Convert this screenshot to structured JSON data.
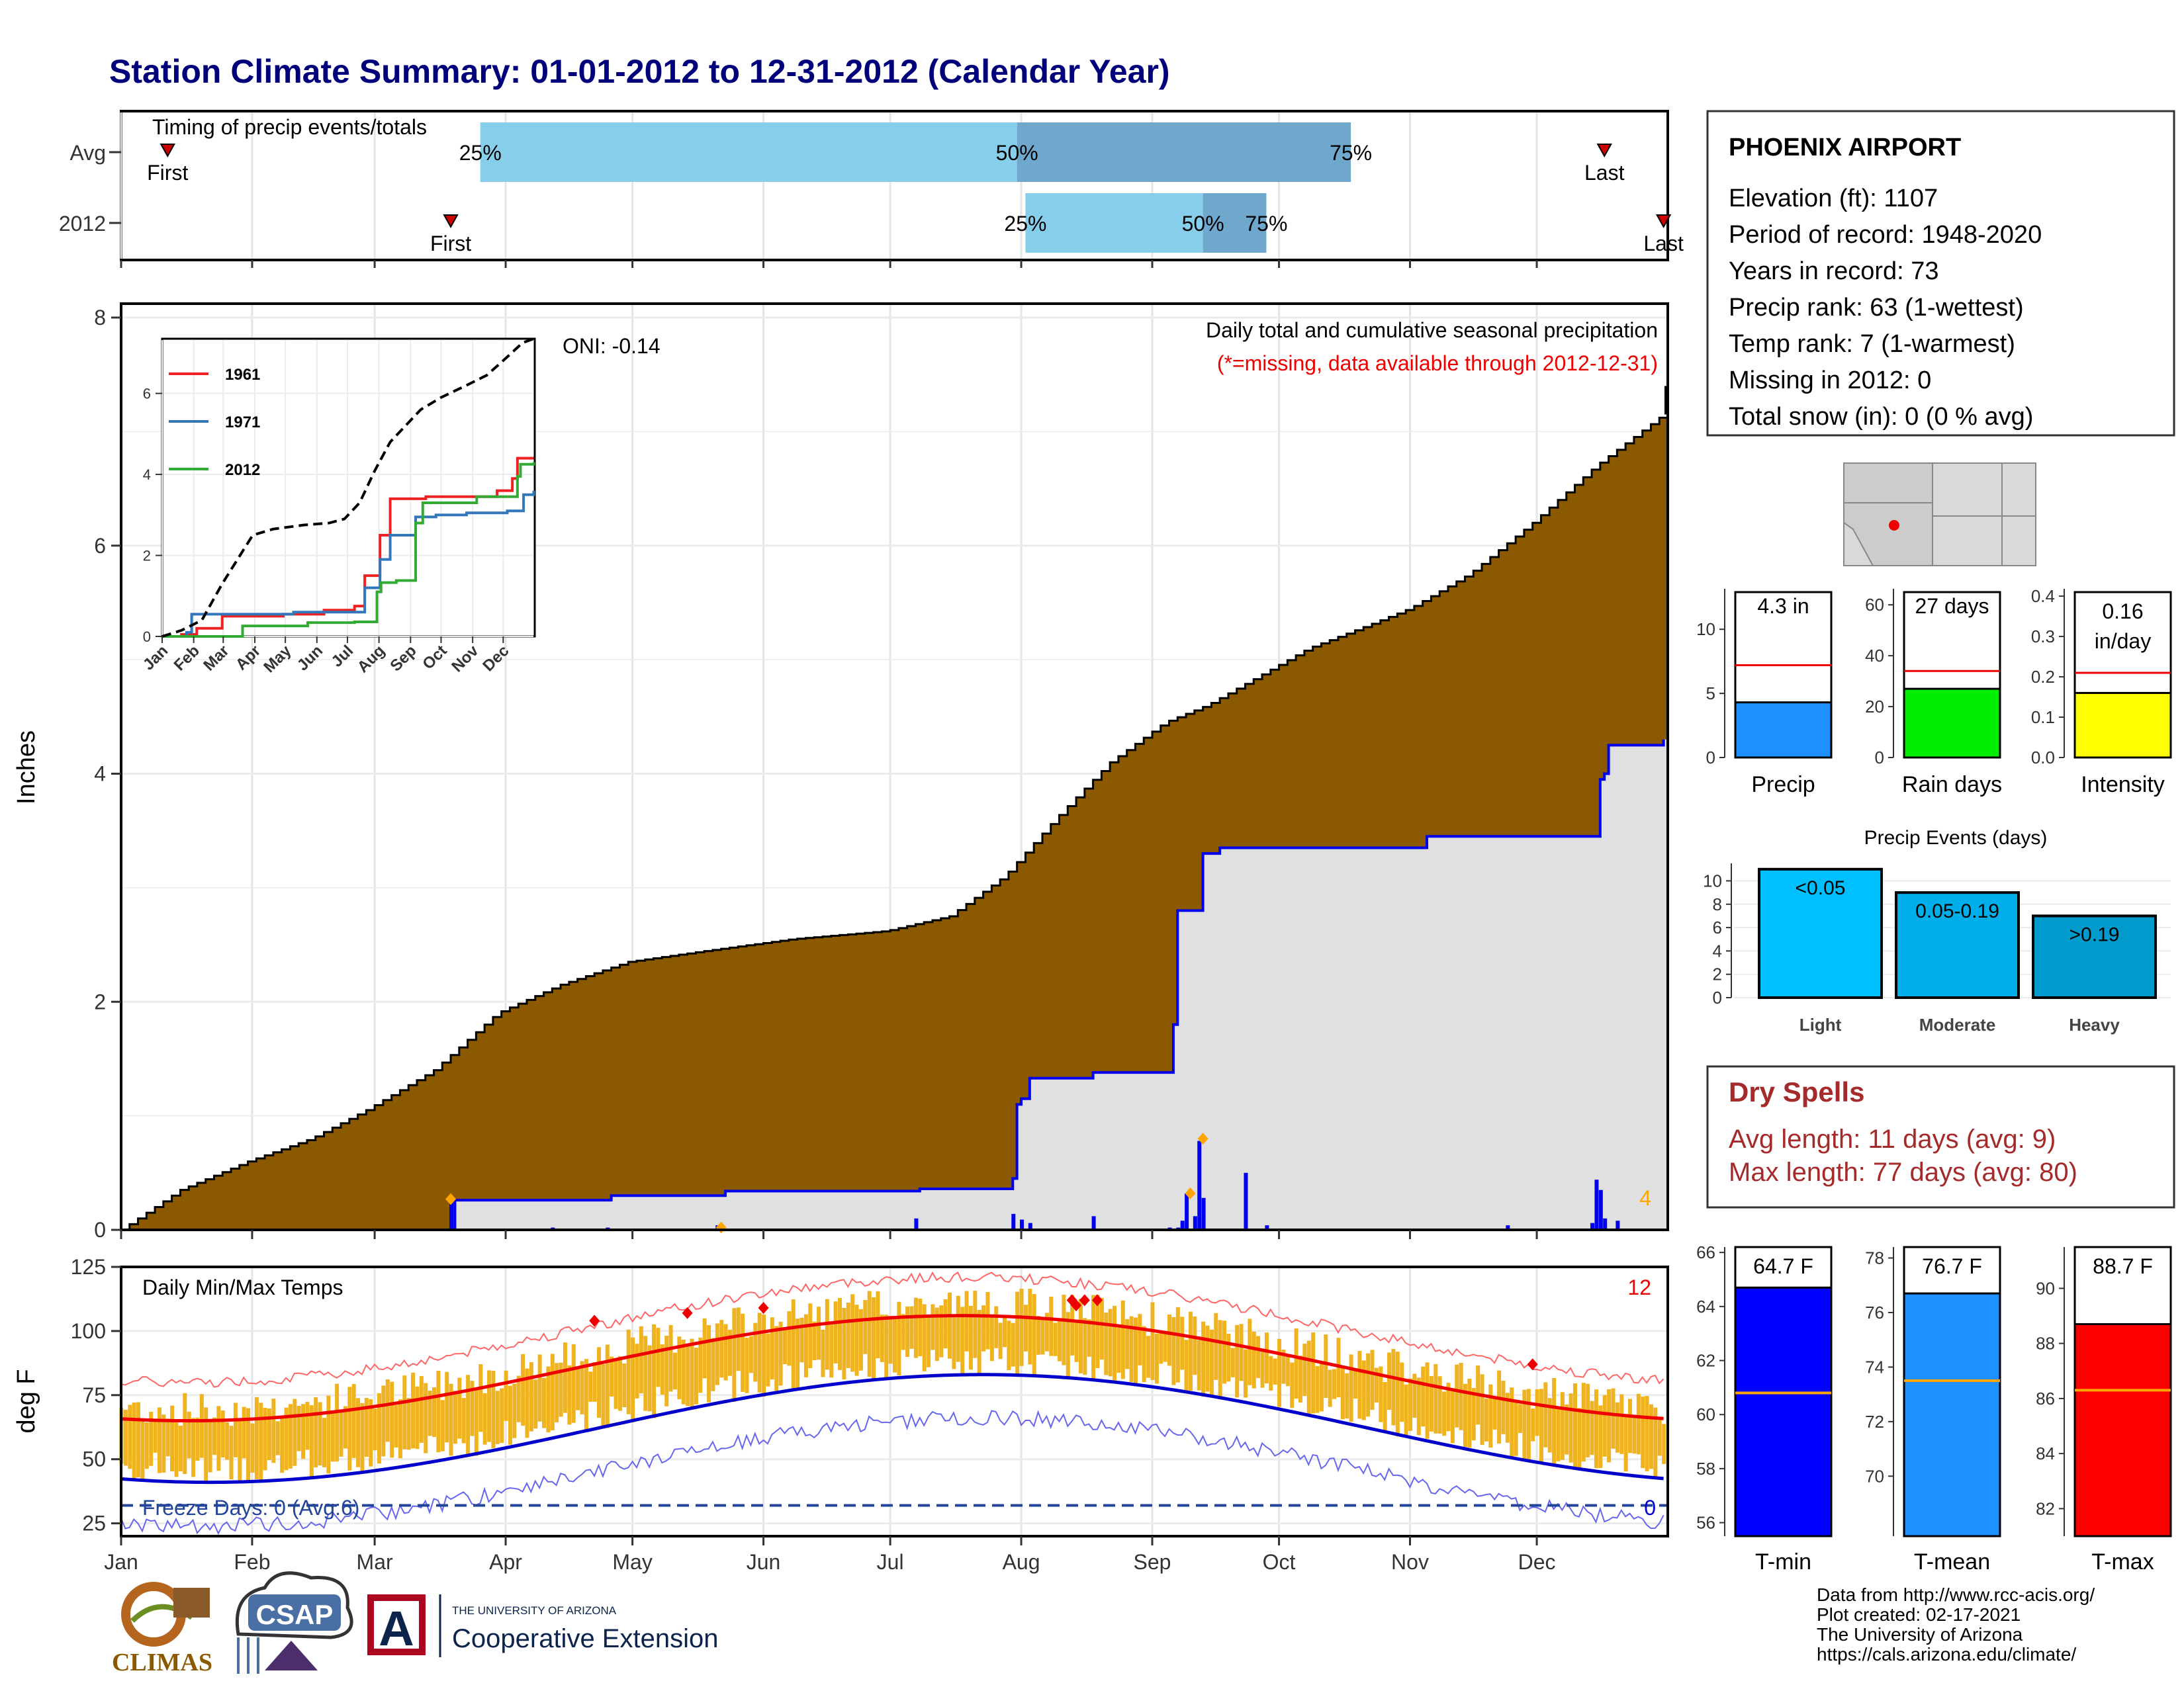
{
  "title": "Station Climate Summary: 01-01-2012 to 12-31-2012 (Calendar Year)",
  "colors": {
    "title": "#00007a",
    "cum_avg_fill": "#8b5a00",
    "cum_2012_fill": "#e0e0e0",
    "cum_2012_line": "#0000ee",
    "daily_bar": "#0000ee",
    "extreme_marker": "#ffa500",
    "temp_band": "#efb320",
    "tmax_line": "#ee0000",
    "tmin_line": "#0000cc",
    "record_high": "#ff6666",
    "record_low": "#6666ee",
    "dry_spell_text": "#a52a2a",
    "missing_note": "#ee0000",
    "quartile_light": "#87ceeb",
    "quartile_dark": "#6fa8cc"
  },
  "months": [
    "Jan",
    "Feb",
    "Mar",
    "Apr",
    "May",
    "Jun",
    "Jul",
    "Aug",
    "Sep",
    "Oct",
    "Nov",
    "Dec"
  ],
  "timing": {
    "label": "Timing of precip events/totals",
    "rows": [
      "Avg",
      "2012"
    ],
    "avg": {
      "first_day": 12,
      "p25_day": 86,
      "p50_day": 213,
      "p75_day": 292,
      "last_day": 352
    },
    "y2012": {
      "first_day": 79,
      "p25_day": 215,
      "p50_day": 257,
      "p75_day": 272,
      "last_day": 366
    },
    "labels": {
      "first": "First",
      "last": "Last",
      "p25": "25%",
      "p50": "50%",
      "p75": "75%"
    }
  },
  "precip": {
    "ylabel": "Inches",
    "ylim": [
      0,
      8
    ],
    "yticks": [
      "0",
      "2",
      "4",
      "6",
      "8"
    ],
    "oni": "ONI: -0.14",
    "header": "Daily total and cumulative seasonal precipitation",
    "missing_note": "(*=missing, data available through 2012-12-31)",
    "extremes_count": "4",
    "avg_cumulative": [
      [
        1,
        0
      ],
      [
        15,
        0.35
      ],
      [
        31,
        0.6
      ],
      [
        46,
        0.8
      ],
      [
        59,
        1.05
      ],
      [
        75,
        1.4
      ],
      [
        90,
        1.9
      ],
      [
        105,
        2.15
      ],
      [
        121,
        2.35
      ],
      [
        140,
        2.45
      ],
      [
        160,
        2.55
      ],
      [
        182,
        2.62
      ],
      [
        197,
        2.75
      ],
      [
        210,
        3.1
      ],
      [
        222,
        3.6
      ],
      [
        235,
        4.1
      ],
      [
        248,
        4.45
      ],
      [
        258,
        4.6
      ],
      [
        270,
        4.85
      ],
      [
        282,
        5.1
      ],
      [
        296,
        5.3
      ],
      [
        306,
        5.45
      ],
      [
        320,
        5.75
      ],
      [
        335,
        6.2
      ],
      [
        350,
        6.7
      ],
      [
        366,
        7.15
      ]
    ],
    "cumulative_2012": [
      [
        1,
        0
      ],
      [
        79,
        0
      ],
      [
        80,
        0.26
      ],
      [
        116,
        0.26
      ],
      [
        117,
        0.3
      ],
      [
        145,
        0.3
      ],
      [
        146,
        0.34
      ],
      [
        213,
        0.34
      ],
      [
        214,
        0.45
      ],
      [
        216,
        0.45
      ],
      [
        217,
        1.1
      ],
      [
        231,
        1.1
      ],
      [
        232,
        1.33
      ],
      [
        250,
        1.33
      ],
      [
        251,
        1.38
      ],
      [
        255,
        1.38
      ],
      [
        256,
        1.8
      ],
      [
        257,
        1.8
      ],
      [
        258,
        2.8
      ],
      [
        270,
        2.8
      ],
      [
        271,
        3.3
      ],
      [
        273,
        3.3
      ],
      [
        274,
        3.4
      ],
      [
        342,
        3.4
      ],
      [
        343,
        3.45
      ],
      [
        380,
        3.45
      ]
    ],
    "cumulative_2012_final": [
      [
        1,
        0
      ],
      [
        79,
        0
      ],
      [
        80,
        0.26
      ],
      [
        116,
        0.26
      ],
      [
        117,
        0.3
      ],
      [
        143,
        0.3
      ],
      [
        144,
        0.34
      ],
      [
        189,
        0.34
      ],
      [
        190,
        0.36
      ],
      [
        211,
        0.36
      ],
      [
        212,
        0.45
      ],
      [
        213,
        1.1
      ],
      [
        214,
        1.15
      ],
      [
        215,
        1.15
      ],
      [
        216,
        1.33
      ],
      [
        230,
        1.33
      ],
      [
        231,
        1.38
      ],
      [
        249,
        1.38
      ],
      [
        250,
        1.8
      ],
      [
        251,
        2.8
      ],
      [
        256,
        2.8
      ],
      [
        257,
        3.3
      ],
      [
        260,
        3.3
      ],
      [
        261,
        3.35
      ],
      [
        309,
        3.35
      ],
      [
        310,
        3.45
      ],
      [
        350,
        3.45
      ],
      [
        351,
        3.95
      ],
      [
        352,
        4.0
      ],
      [
        353,
        4.25
      ],
      [
        366,
        4.3
      ]
    ],
    "daily_bars": [
      [
        79,
        0.26
      ],
      [
        103,
        0.02
      ],
      [
        116,
        0.02
      ],
      [
        142,
        0.04
      ],
      [
        189,
        0.1
      ],
      [
        212,
        0.14
      ],
      [
        214,
        0.09
      ],
      [
        216,
        0.06
      ],
      [
        231,
        0.12
      ],
      [
        249,
        0.02
      ],
      [
        251,
        0.02
      ],
      [
        252,
        0.08
      ],
      [
        253,
        0.32
      ],
      [
        255,
        0.12
      ],
      [
        256,
        0.78
      ],
      [
        257,
        0.28
      ],
      [
        267,
        0.5
      ],
      [
        272,
        0.04
      ],
      [
        329,
        0.04
      ],
      [
        349,
        0.06
      ],
      [
        350,
        0.44
      ],
      [
        351,
        0.35
      ],
      [
        352,
        0.1
      ],
      [
        355,
        0.08
      ]
    ],
    "extreme_markers": [
      [
        79,
        0.27
      ],
      [
        143,
        0.02
      ],
      [
        254,
        0.32
      ],
      [
        257,
        0.8
      ]
    ]
  },
  "inset": {
    "yticks": [
      "0",
      "2",
      "4",
      "6"
    ],
    "months": [
      "Jan",
      "Feb",
      "Mar",
      "Apr",
      "May",
      "Jun",
      "Jul",
      "Aug",
      "Sep",
      "Oct",
      "Nov",
      "Dec"
    ],
    "legend": [
      "1961",
      "1971",
      "2012"
    ],
    "series": [
      {
        "name": "1961",
        "color": "#ee2222",
        "points": [
          [
            1,
            0
          ],
          [
            20,
            0.05
          ],
          [
            35,
            0.2
          ],
          [
            60,
            0.5
          ],
          [
            90,
            0.5
          ],
          [
            120,
            0.55
          ],
          [
            160,
            0.65
          ],
          [
            190,
            0.75
          ],
          [
            200,
            1.5
          ],
          [
            215,
            2.5
          ],
          [
            225,
            3.4
          ],
          [
            245,
            3.4
          ],
          [
            260,
            3.45
          ],
          [
            300,
            3.45
          ],
          [
            330,
            3.6
          ],
          [
            345,
            3.9
          ],
          [
            350,
            4.4
          ],
          [
            366,
            4.4
          ]
        ]
      },
      {
        "name": "1971",
        "color": "#3377bb",
        "points": [
          [
            1,
            0
          ],
          [
            25,
            0.1
          ],
          [
            30,
            0.55
          ],
          [
            60,
            0.55
          ],
          [
            90,
            0.55
          ],
          [
            130,
            0.6
          ],
          [
            170,
            0.6
          ],
          [
            200,
            1.2
          ],
          [
            215,
            1.9
          ],
          [
            225,
            2.5
          ],
          [
            250,
            2.95
          ],
          [
            270,
            3.0
          ],
          [
            300,
            3.05
          ],
          [
            340,
            3.1
          ],
          [
            356,
            3.5
          ],
          [
            366,
            3.6
          ]
        ]
      },
      {
        "name": "2012",
        "color": "#33aa33",
        "points": [
          [
            1,
            0
          ],
          [
            79,
            0
          ],
          [
            80,
            0.26
          ],
          [
            144,
            0.34
          ],
          [
            190,
            0.36
          ],
          [
            212,
            1.1
          ],
          [
            216,
            1.33
          ],
          [
            231,
            1.38
          ],
          [
            250,
            2.8
          ],
          [
            257,
            3.3
          ],
          [
            310,
            3.45
          ],
          [
            350,
            3.95
          ],
          [
            353,
            4.25
          ],
          [
            366,
            4.3
          ]
        ]
      }
    ],
    "avg_dashed": [
      [
        1,
        0
      ],
      [
        20,
        0.15
      ],
      [
        40,
        0.4
      ],
      [
        60,
        1.3
      ],
      [
        75,
        1.9
      ],
      [
        90,
        2.5
      ],
      [
        110,
        2.65
      ],
      [
        140,
        2.75
      ],
      [
        165,
        2.8
      ],
      [
        180,
        2.9
      ],
      [
        195,
        3.3
      ],
      [
        210,
        4.1
      ],
      [
        225,
        4.8
      ],
      [
        240,
        5.2
      ],
      [
        255,
        5.6
      ],
      [
        275,
        5.9
      ],
      [
        300,
        6.2
      ],
      [
        320,
        6.45
      ],
      [
        340,
        6.9
      ],
      [
        355,
        7.25
      ],
      [
        366,
        7.35
      ]
    ]
  },
  "temps": {
    "ylabel": "deg F",
    "ylim": [
      20,
      125
    ],
    "yticks": [
      "25",
      "50",
      "75",
      "100",
      "125"
    ],
    "title": "Daily Min/Max Temps",
    "record_count": "12",
    "freeze_label": "Freeze Days: 0 (Avg:6)",
    "freeze_count": "0",
    "freeze_line": 32
  },
  "station": {
    "name": "PHOENIX AIRPORT",
    "lines": [
      "Elevation (ft): 1107",
      "Period of record: 1948-2020",
      "Years in record: 73",
      "Precip rank: 63 (1-wettest)",
      "Temp rank: 7 (1-warmest)",
      "Missing in 2012: 0",
      "Total snow (in): 0 (0 % avg)"
    ]
  },
  "summary_bars": [
    {
      "label": "Precip",
      "value_text": "4.3 in",
      "value": 4.3,
      "avg": 7.2,
      "ymax": 12.9,
      "ticks": [
        [
          0,
          "0"
        ],
        [
          5,
          "5"
        ],
        [
          10,
          "10"
        ]
      ],
      "color": "#1e90ff"
    },
    {
      "label": "Rain days",
      "value_text": "27 days",
      "value": 27,
      "avg": 34,
      "ymax": 65,
      "ticks": [
        [
          0,
          "0"
        ],
        [
          20,
          "20"
        ],
        [
          40,
          "40"
        ],
        [
          60,
          "60"
        ]
      ],
      "color": "#00ee00"
    },
    {
      "label": "Intensity",
      "value_text": "0.16 in/day",
      "value": 0.16,
      "avg": 0.21,
      "ymax": 0.41,
      "ticks": [
        [
          0,
          "0.0"
        ],
        [
          0.1,
          "0.1"
        ],
        [
          0.2,
          "0.2"
        ],
        [
          0.3,
          "0.3"
        ],
        [
          0.4,
          "0.4"
        ]
      ],
      "color": "#ffff00"
    }
  ],
  "precip_events": {
    "title": "Precip Events (days)",
    "ymax": 11.5,
    "yticks": [
      "0",
      "2",
      "4",
      "6",
      "8",
      "10"
    ],
    "bars": [
      {
        "label": "Light",
        "bin": "<0.05",
        "value": 11,
        "color": "#00bfff"
      },
      {
        "label": "Moderate",
        "bin": "0.05-0.19",
        "value": 9,
        "color": "#00aeea"
      },
      {
        "label": "Heavy",
        "bin": ">0.19",
        "value": 7,
        "color": "#009acd"
      }
    ]
  },
  "dry_spells": {
    "title": "Dry Spells",
    "avg_length": "Avg length: 11 days (avg: 9)",
    "max_length": "Max length: 77 days (avg: 80)"
  },
  "temp_summary": [
    {
      "label": "T-min",
      "value_text": "64.7 F",
      "value": 64.7,
      "avg": 60.8,
      "ymin": 55.5,
      "ymax": 66.2,
      "ticks": [
        56,
        58,
        60,
        62,
        64,
        66
      ],
      "color": "#0000ff"
    },
    {
      "label": "T-mean",
      "value_text": "76.7 F",
      "value": 76.7,
      "avg": 73.5,
      "ymin": 67.8,
      "ymax": 78.4,
      "ticks": [
        70,
        72,
        74,
        76,
        78
      ],
      "color": "#1e90ff"
    },
    {
      "label": "T-max",
      "value_text": "88.7 F",
      "value": 88.7,
      "avg": 86.3,
      "ymin": 81,
      "ymax": 91.5,
      "ticks": [
        82,
        84,
        86,
        88,
        90
      ],
      "color": "#ff0000"
    }
  ],
  "credits": [
    "Data from http://www.rcc-acis.org/",
    "Plot created: 02-17-2021",
    "The University of Arizona",
    "https://cals.arizona.edu/climate/"
  ],
  "logos": {
    "climas": "CLIMAS",
    "csap": "CSAP",
    "ua_small": "THE UNIVERSITY OF ARIZONA",
    "ua_big": "Cooperative Extension",
    "ua_letter": "A"
  }
}
